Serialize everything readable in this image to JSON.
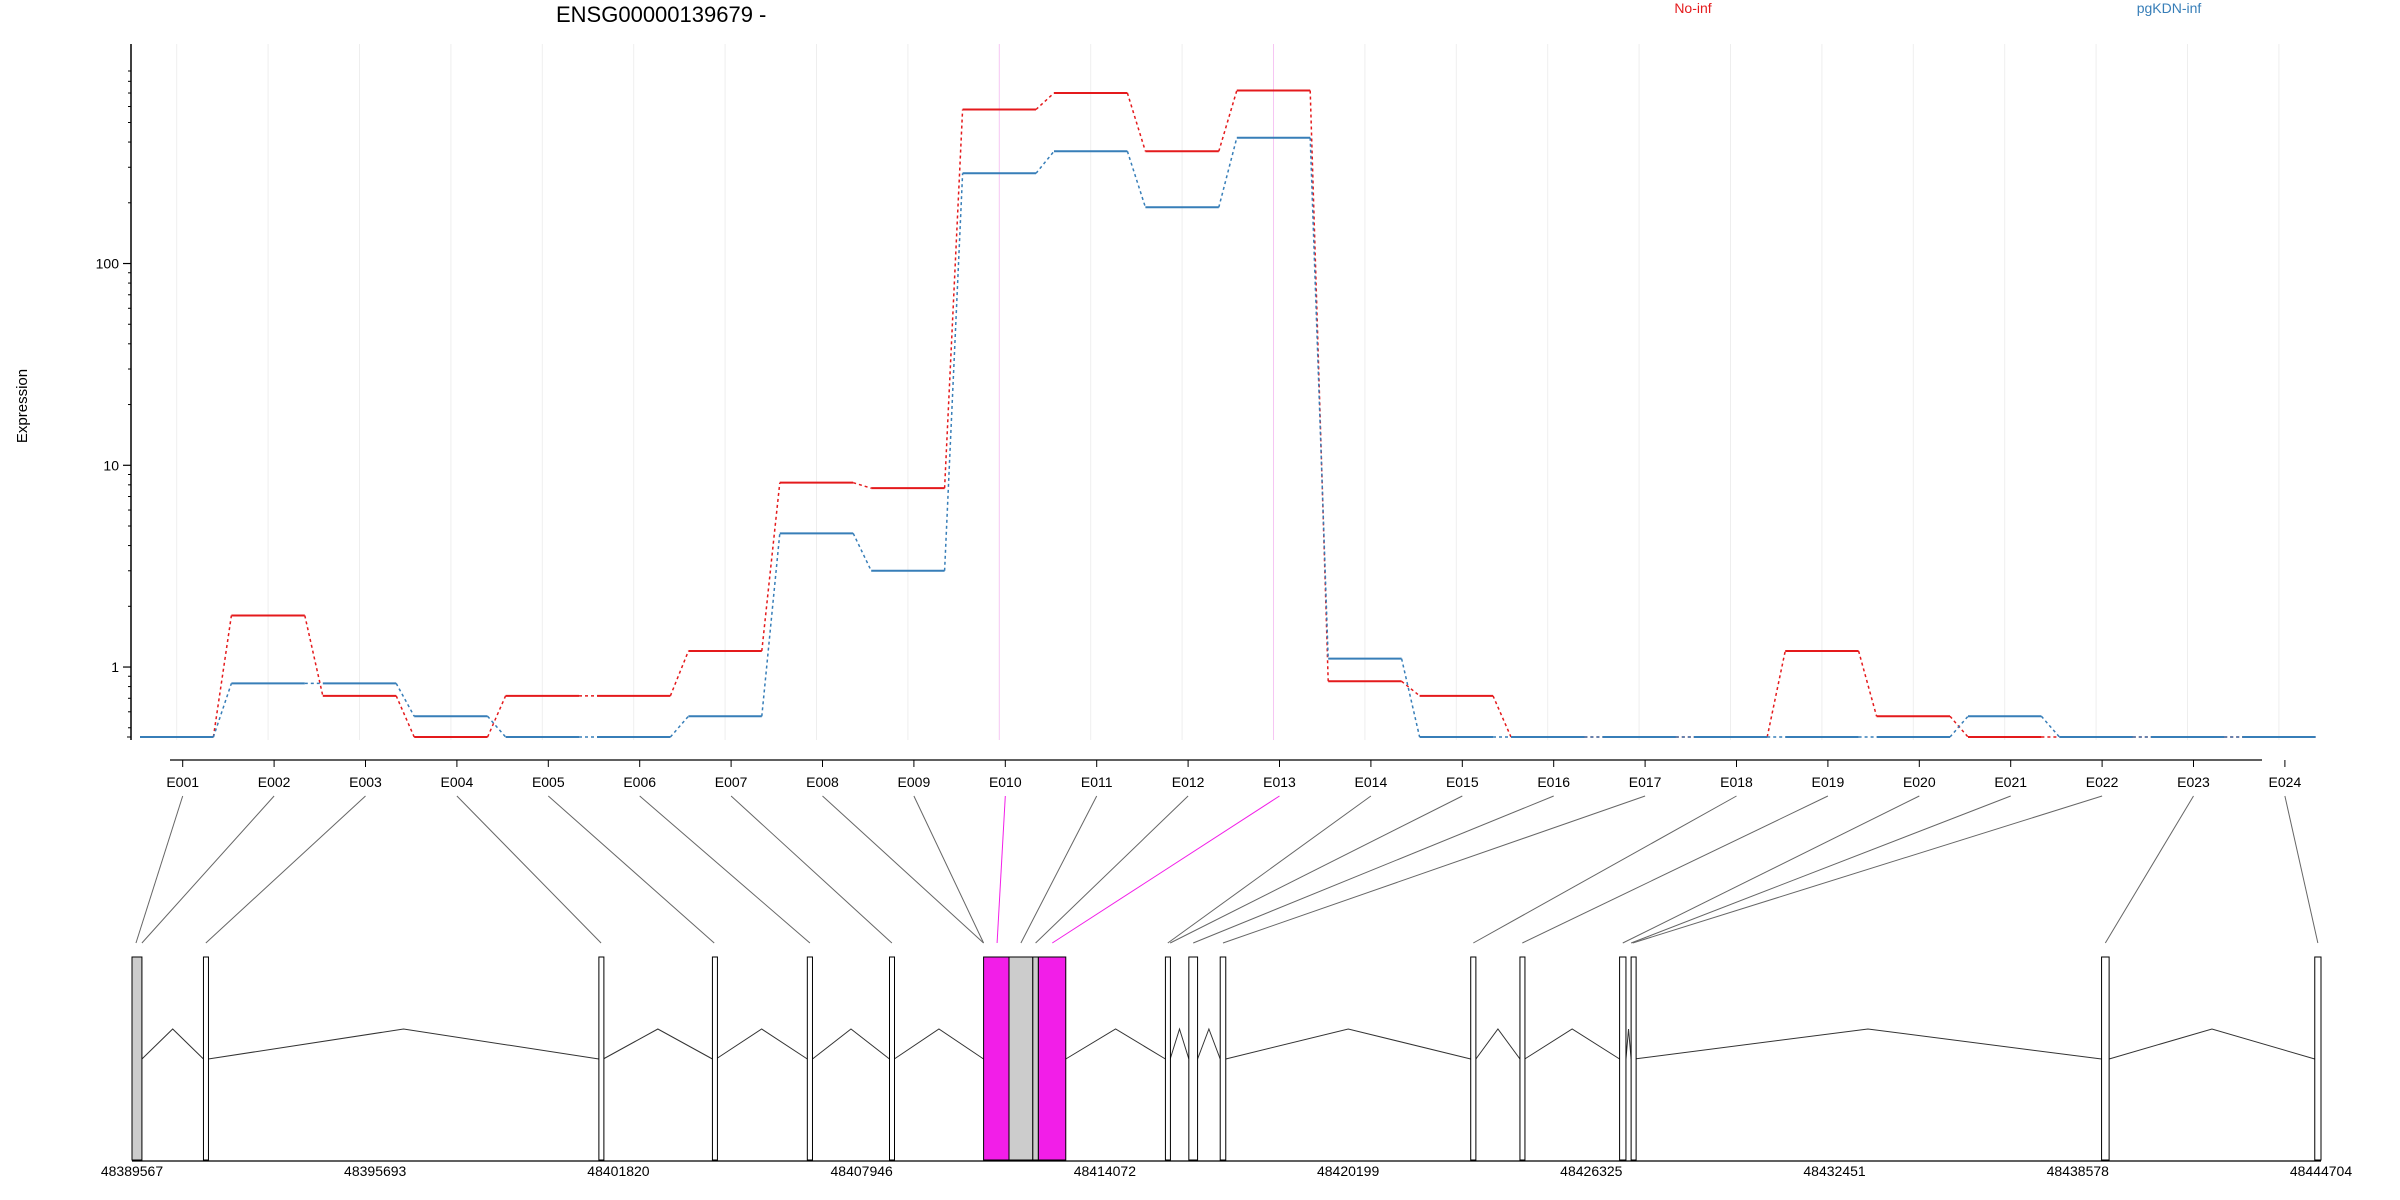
{
  "chart_data": {
    "type": "line",
    "title": "ENSG00000139679 -",
    "ylabel": "Expression",
    "yscale": "log",
    "ylim": [
      0.45,
      900
    ],
    "y_ticks": [
      1,
      10,
      100
    ],
    "y_tick_labels": [
      "1",
      "10",
      "100"
    ],
    "grid": true,
    "legend_placement": "top",
    "categories": [
      "E001",
      "E002",
      "E003",
      "E004",
      "E005",
      "E006",
      "E007",
      "E008",
      "E009",
      "E010",
      "E011",
      "E012",
      "E013",
      "E014",
      "E015",
      "E016",
      "E017",
      "E018",
      "E019",
      "E020",
      "E021",
      "E022",
      "E023",
      "E024"
    ],
    "series": [
      {
        "name": "No-inf",
        "color": "#e41a1c",
        "values": [
          0.45,
          1.8,
          0.72,
          0.45,
          0.72,
          0.72,
          1.2,
          8.2,
          7.7,
          580,
          700,
          360,
          720,
          0.85,
          0.72,
          0.45,
          0.45,
          0.45,
          1.2,
          0.57,
          0.45,
          0.45,
          0.45,
          0.45
        ]
      },
      {
        "name": "pgKDN-inf",
        "color": "#377eb8",
        "values": [
          0.45,
          0.83,
          0.83,
          0.57,
          0.45,
          0.45,
          0.57,
          4.6,
          3.0,
          280,
          360,
          190,
          420,
          1.1,
          0.45,
          0.45,
          0.45,
          0.45,
          0.45,
          0.45,
          0.57,
          0.45,
          0.45,
          0.45
        ]
      }
    ],
    "highlighted_exons": [
      "E010",
      "E013"
    ],
    "highlight_color": "#f21ee8",
    "genomic_axis": {
      "xlim": [
        48389567,
        48444704
      ],
      "ticks": [
        48389567,
        48395693,
        48401820,
        48407946,
        48414072,
        48420199,
        48426325,
        48432451,
        48438578,
        48444704
      ],
      "tick_labels": [
        "48389567",
        "48395693",
        "48401820",
        "48407946",
        "48414072",
        "48420199",
        "48426325",
        "48432451",
        "48438578",
        "48444704"
      ]
    },
    "gene_model": {
      "exons": [
        {
          "start": 48389567,
          "end": 48389817,
          "fill": "#cccccc"
        },
        {
          "start": 48391367,
          "end": 48391487,
          "fill": "#ffffff"
        },
        {
          "start": 48401327,
          "end": 48401437,
          "fill": "#ffffff"
        },
        {
          "start": 48404187,
          "end": 48404277,
          "fill": "#ffffff"
        },
        {
          "start": 48406577,
          "end": 48406707,
          "fill": "#ffffff"
        },
        {
          "start": 48408647,
          "end": 48408767,
          "fill": "#ffffff"
        },
        {
          "start": 48411017,
          "end": 48411657,
          "fill": "#f21ee8"
        },
        {
          "start": 48411657,
          "end": 48412257,
          "fill": "#cccccc"
        },
        {
          "start": 48412257,
          "end": 48412397,
          "fill": "#cccccc"
        },
        {
          "start": 48412397,
          "end": 48413087,
          "fill": "#f21ee8"
        },
        {
          "start": 48415597,
          "end": 48415717,
          "fill": "#ffffff"
        },
        {
          "start": 48416187,
          "end": 48416407,
          "fill": "#ffffff"
        },
        {
          "start": 48416977,
          "end": 48417117,
          "fill": "#ffffff"
        },
        {
          "start": 48423287,
          "end": 48423417,
          "fill": "#ffffff"
        },
        {
          "start": 48424527,
          "end": 48424647,
          "fill": "#ffffff"
        },
        {
          "start": 48427037,
          "end": 48427197,
          "fill": "#ffffff"
        },
        {
          "start": 48427327,
          "end": 48427407,
          "fill": "#ffffff"
        },
        {
          "start": 48439177,
          "end": 48439367,
          "fill": "#ffffff"
        },
        {
          "start": 48444547,
          "end": 48444704,
          "fill": "#ffffff"
        }
      ],
      "exon_links": [
        {
          "bin": "E001",
          "pos": 48389667
        },
        {
          "bin": "E002",
          "pos": 48389817
        },
        {
          "bin": "E003",
          "pos": 48391427
        },
        {
          "bin": "E004",
          "pos": 48401382
        },
        {
          "bin": "E005",
          "pos": 48404232
        },
        {
          "bin": "E006",
          "pos": 48406642
        },
        {
          "bin": "E007",
          "pos": 48408707
        },
        {
          "bin": "E008",
          "pos": 48411017
        },
        {
          "bin": "E009",
          "pos": 48411017
        },
        {
          "bin": "E010",
          "pos": 48411357
        },
        {
          "bin": "E011",
          "pos": 48411957
        },
        {
          "bin": "E012",
          "pos": 48412327
        },
        {
          "bin": "E013",
          "pos": 48412747
        },
        {
          "bin": "E014",
          "pos": 48415657
        },
        {
          "bin": "E015",
          "pos": 48415717
        },
        {
          "bin": "E016",
          "pos": 48416297
        },
        {
          "bin": "E017",
          "pos": 48417047
        },
        {
          "bin": "E018",
          "pos": 48423352
        },
        {
          "bin": "E019",
          "pos": 48424587
        },
        {
          "bin": "E020",
          "pos": 48427117
        },
        {
          "bin": "E021",
          "pos": 48427327
        },
        {
          "bin": "E022",
          "pos": 48427367
        },
        {
          "bin": "E023",
          "pos": 48439272
        },
        {
          "bin": "E024",
          "pos": 48444625
        }
      ]
    }
  }
}
